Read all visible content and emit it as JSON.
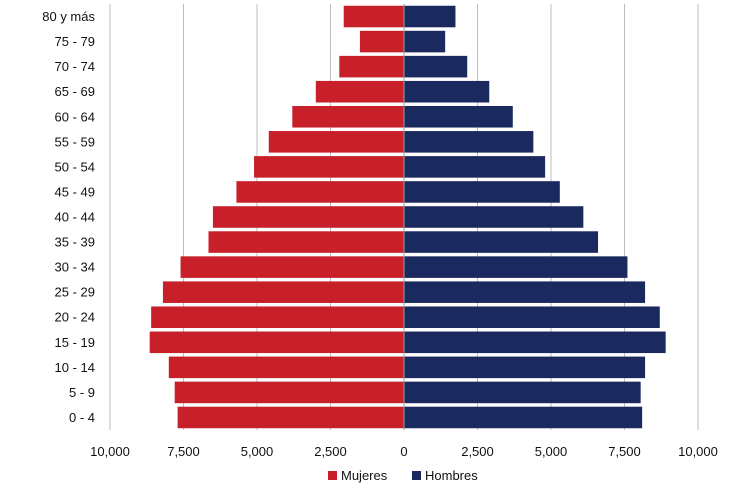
{
  "chart_data": {
    "type": "bar",
    "orientation": "horizontal-population-pyramid",
    "categories": [
      "80 y más",
      "75 - 79",
      "70 - 74",
      "65 - 69",
      "60 - 64",
      "55 - 59",
      "50 - 54",
      "45 - 49",
      "40 - 44",
      "35 - 39",
      "30 - 34",
      "25 - 29",
      "20 - 24",
      "15 - 19",
      "10 - 14",
      "5 - 9",
      "0 - 4"
    ],
    "series": [
      {
        "name": "Mujeres",
        "color": "#c8202a",
        "side": "left",
        "values": [
          2050,
          1500,
          2200,
          3000,
          3800,
          4600,
          5100,
          5700,
          6500,
          6650,
          7600,
          8200,
          8600,
          8650,
          8000,
          7800,
          7700
        ]
      },
      {
        "name": "Hombres",
        "color": "#1b2a5e",
        "side": "right",
        "values": [
          1750,
          1400,
          2150,
          2900,
          3700,
          4400,
          4800,
          5300,
          6100,
          6600,
          7600,
          8200,
          8700,
          8900,
          8200,
          8050,
          8100
        ]
      }
    ],
    "x_ticks": [
      "10,000",
      "7,500",
      "5,000",
      "2,500",
      "0",
      "2,500",
      "5,000",
      "7,500",
      "10,000"
    ],
    "xlim": [
      -10000,
      10000
    ],
    "grid": "vertical",
    "legend": "bottom-center"
  }
}
